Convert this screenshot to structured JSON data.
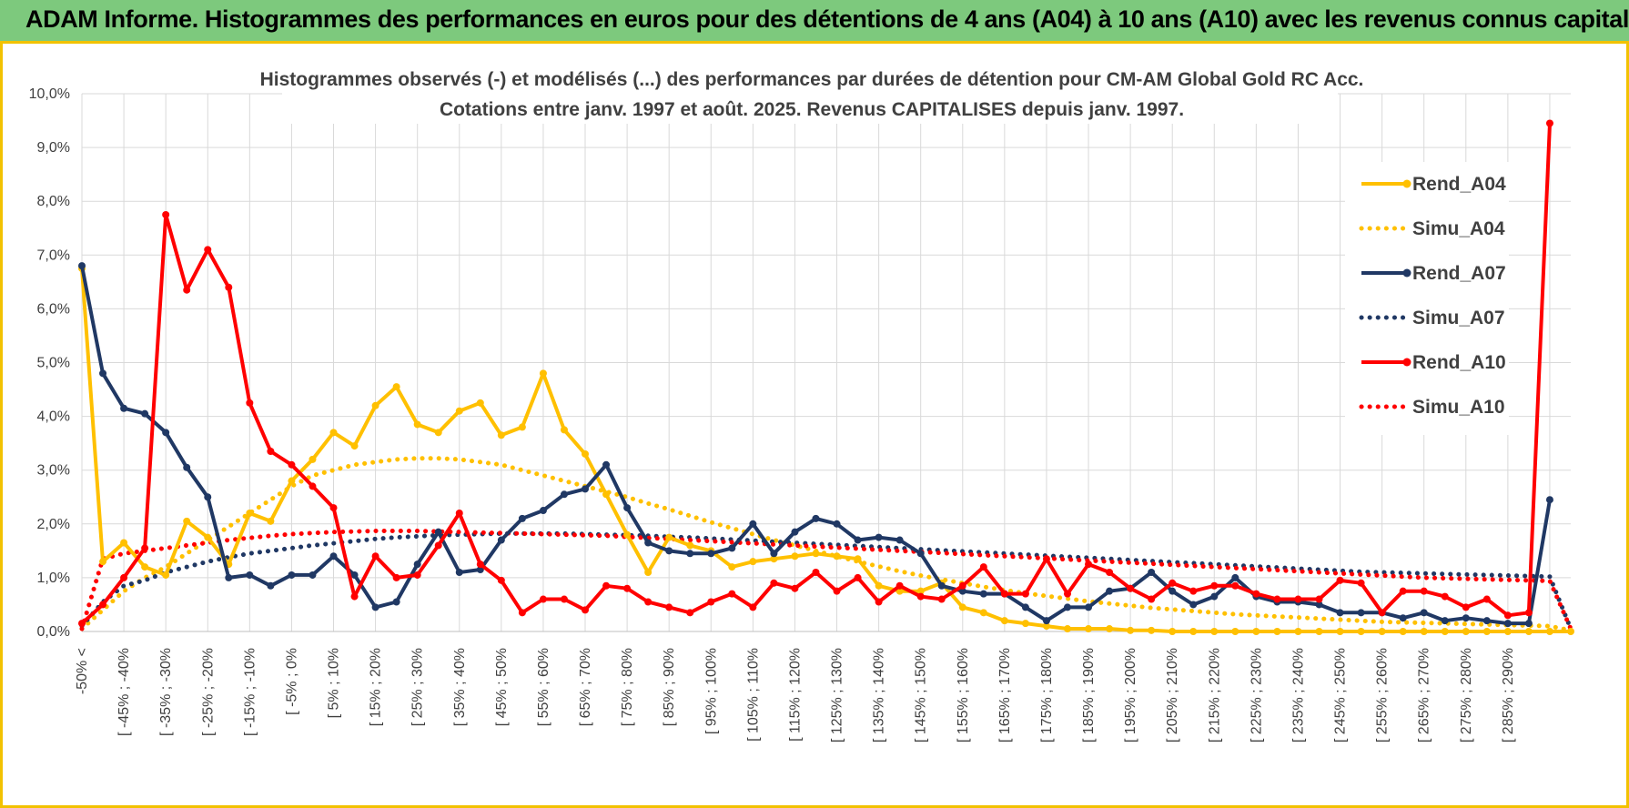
{
  "banner": {
    "title": "ADAM Informe. Histogrammes des performances en euros pour des détentions de 4 ans (A04) à 10 ans (A10) avec les revenus connus capitalisés"
  },
  "chart_data": {
    "type": "line",
    "title": [
      "Histogrammes observés (-) et modélisés (...) des performances par durées de détention pour CM-AM Global Gold RC Acc.",
      "Cotations entre janv. 1997 et août. 2025. Revenus CAPITALISES depuis janv. 1997."
    ],
    "xlabel": "",
    "ylabel": "",
    "ylim": [
      0,
      10
    ],
    "y_ticks": [
      "0,0%",
      "1,0%",
      "2,0%",
      "3,0%",
      "4,0%",
      "5,0%",
      "6,0%",
      "7,0%",
      "8,0%",
      "9,0%",
      "10,0%"
    ],
    "grid": true,
    "legend_position": "right",
    "x_tick_labels": [
      "-50% <",
      "[ -45% ; -40%",
      "[ -35% ; -30%",
      "[ -25% ; -20%",
      "[ -15% ; -10%",
      "[ -5% ; 0%",
      "[ 5% ; 10%",
      "[ 15% ; 20%",
      "[ 25% ; 30%",
      "[ 35% ; 40%",
      "[ 45% ; 50%",
      "[ 55% ; 60%",
      "[ 65% ; 70%",
      "[ 75% ; 80%",
      "[ 85% ; 90%",
      "[ 95% ; 100%",
      "[ 105% ; 110%",
      "[ 115% ; 120%",
      "[ 125% ; 130%",
      "[ 135% ; 140%",
      "[ 145% ; 150%",
      "[ 155% ; 160%",
      "[ 165% ; 170%",
      "[ 175% ; 180%",
      "[ 185% ; 190%",
      "[ 195% ; 200%",
      "[ 205% ; 210%",
      "[ 215% ; 220%",
      "[ 225% ; 230%",
      "[ 235% ; 240%",
      "[ 245% ; 250%",
      "[ 255% ; 260%",
      "[ 265% ; 270%",
      "[ 275% ; 280%",
      "[ 285% ; 290%"
    ],
    "series": [
      {
        "name": "Rend_A04",
        "style": "solid",
        "color": "#ffc000",
        "values": [
          6.75,
          1.3,
          1.65,
          1.2,
          1.05,
          2.05,
          1.75,
          1.25,
          2.2,
          2.05,
          2.8,
          3.2,
          3.7,
          3.45,
          4.2,
          4.55,
          3.85,
          3.7,
          4.1,
          4.25,
          3.65,
          3.8,
          4.8,
          3.75,
          3.3,
          2.55,
          1.8,
          1.1,
          1.75,
          1.6,
          1.5,
          1.2,
          1.3,
          1.35,
          1.4,
          1.45,
          1.4,
          1.35,
          0.85,
          0.75,
          0.75,
          0.9,
          0.45,
          0.35,
          0.2,
          0.15,
          0.1,
          0.05,
          0.05,
          0.05,
          0.02,
          0.02,
          0,
          0,
          0,
          0,
          0,
          0,
          0,
          0,
          0,
          0,
          0,
          0,
          0,
          0,
          0,
          0,
          0,
          0,
          0,
          0
        ]
      },
      {
        "name": "Simu_A04",
        "style": "dotted",
        "color": "#ffc000",
        "values": [
          0.05,
          0.4,
          0.75,
          1.0,
          1.2,
          1.45,
          1.7,
          1.95,
          2.2,
          2.45,
          2.7,
          2.9,
          3.0,
          3.1,
          3.15,
          3.2,
          3.22,
          3.22,
          3.2,
          3.15,
          3.1,
          3.0,
          2.9,
          2.8,
          2.7,
          2.6,
          2.5,
          2.38,
          2.27,
          2.15,
          2.03,
          1.92,
          1.81,
          1.7,
          1.6,
          1.5,
          1.4,
          1.3,
          1.21,
          1.12,
          1.04,
          0.97,
          0.9,
          0.83,
          0.77,
          0.71,
          0.66,
          0.61,
          0.56,
          0.52,
          0.48,
          0.44,
          0.41,
          0.38,
          0.35,
          0.32,
          0.3,
          0.28,
          0.26,
          0.24,
          0.22,
          0.2,
          0.18,
          0.17,
          0.16,
          0.15,
          0.14,
          0.13,
          0.12,
          0.11,
          0.1,
          0.02
        ]
      },
      {
        "name": "Rend_A07",
        "style": "solid",
        "color": "#203864",
        "values": [
          6.8,
          4.8,
          4.15,
          4.05,
          3.7,
          3.05,
          2.5,
          1.0,
          1.05,
          0.85,
          1.05,
          1.05,
          1.4,
          1.05,
          0.45,
          0.55,
          1.25,
          1.85,
          1.1,
          1.15,
          1.7,
          2.1,
          2.25,
          2.55,
          2.65,
          3.1,
          2.3,
          1.65,
          1.5,
          1.45,
          1.45,
          1.55,
          2.0,
          1.45,
          1.85,
          2.1,
          2.0,
          1.7,
          1.75,
          1.7,
          1.45,
          0.85,
          0.75,
          0.7,
          0.7,
          0.45,
          0.2,
          0.45,
          0.45,
          0.75,
          0.8,
          1.1,
          0.75,
          0.5,
          0.65,
          1.0,
          0.65,
          0.55,
          0.55,
          0.5,
          0.35,
          0.35,
          0.35,
          0.25,
          0.35,
          0.2,
          0.25,
          0.2,
          0.15,
          0.15,
          2.45
        ]
      },
      {
        "name": "Simu_A07",
        "style": "dotted",
        "color": "#203864",
        "values": [
          0.1,
          0.55,
          0.85,
          0.95,
          1.1,
          1.2,
          1.3,
          1.38,
          1.45,
          1.5,
          1.55,
          1.6,
          1.64,
          1.68,
          1.72,
          1.75,
          1.77,
          1.79,
          1.8,
          1.81,
          1.82,
          1.82,
          1.82,
          1.82,
          1.81,
          1.8,
          1.79,
          1.78,
          1.76,
          1.75,
          1.73,
          1.71,
          1.69,
          1.67,
          1.65,
          1.63,
          1.61,
          1.59,
          1.57,
          1.55,
          1.53,
          1.51,
          1.49,
          1.47,
          1.45,
          1.43,
          1.41,
          1.39,
          1.37,
          1.35,
          1.33,
          1.31,
          1.29,
          1.27,
          1.25,
          1.23,
          1.21,
          1.19,
          1.17,
          1.15,
          1.13,
          1.11,
          1.1,
          1.09,
          1.08,
          1.07,
          1.06,
          1.05,
          1.04,
          1.03,
          1.02,
          0.05
        ]
      },
      {
        "name": "Rend_A10",
        "style": "solid",
        "color": "#ff0000",
        "values": [
          0.15,
          0.5,
          1.0,
          1.55,
          7.75,
          6.35,
          7.1,
          6.4,
          4.25,
          3.35,
          3.1,
          2.7,
          2.3,
          0.65,
          1.4,
          1.0,
          1.05,
          1.6,
          2.2,
          1.25,
          0.95,
          0.35,
          0.6,
          0.6,
          0.4,
          0.85,
          0.8,
          0.55,
          0.45,
          0.35,
          0.55,
          0.7,
          0.45,
          0.9,
          0.8,
          1.1,
          0.75,
          1.0,
          0.55,
          0.85,
          0.65,
          0.6,
          0.85,
          1.2,
          0.7,
          0.7,
          1.35,
          0.7,
          1.25,
          1.1,
          0.8,
          0.6,
          0.9,
          0.75,
          0.85,
          0.85,
          0.7,
          0.6,
          0.6,
          0.6,
          0.95,
          0.9,
          0.35,
          0.75,
          0.75,
          0.65,
          0.45,
          0.6,
          0.3,
          0.35,
          9.45
        ]
      },
      {
        "name": "Simu_A10",
        "style": "dotted",
        "color": "#ff0000",
        "values": [
          0.05,
          1.35,
          1.45,
          1.5,
          1.55,
          1.6,
          1.65,
          1.7,
          1.74,
          1.78,
          1.81,
          1.83,
          1.85,
          1.86,
          1.87,
          1.87,
          1.87,
          1.86,
          1.85,
          1.84,
          1.83,
          1.82,
          1.81,
          1.8,
          1.79,
          1.78,
          1.76,
          1.74,
          1.72,
          1.7,
          1.68,
          1.66,
          1.64,
          1.62,
          1.6,
          1.58,
          1.56,
          1.54,
          1.52,
          1.5,
          1.48,
          1.46,
          1.44,
          1.42,
          1.4,
          1.38,
          1.36,
          1.34,
          1.32,
          1.3,
          1.28,
          1.26,
          1.24,
          1.22,
          1.2,
          1.18,
          1.16,
          1.14,
          1.12,
          1.1,
          1.08,
          1.06,
          1.04,
          1.02,
          1.0,
          0.99,
          0.98,
          0.97,
          0.96,
          0.95,
          0.94,
          0.05
        ]
      }
    ]
  }
}
